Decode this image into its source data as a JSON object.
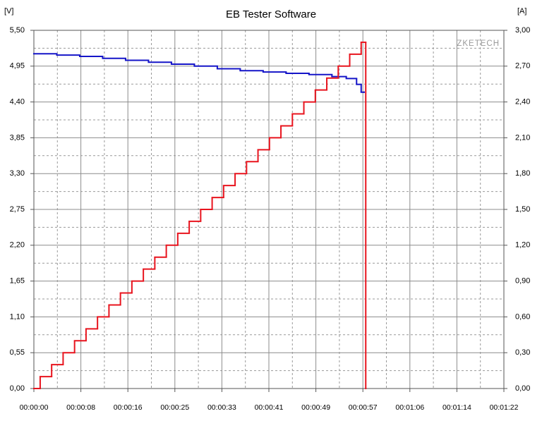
{
  "chart_data": {
    "type": "step",
    "title": "EB Tester Software",
    "y_unit": "[V]",
    "y2_unit": "[A]",
    "watermark": "ZKETECH",
    "xlim": [
      0,
      82
    ],
    "xticks": [
      {
        "value": 0,
        "label": "00:00:00"
      },
      {
        "value": 8.2,
        "label": "00:00:08"
      },
      {
        "value": 16.4,
        "label": "00:00:16"
      },
      {
        "value": 24.6,
        "label": "00:00:25"
      },
      {
        "value": 32.8,
        "label": "00:00:33"
      },
      {
        "value": 41,
        "label": "00:00:41"
      },
      {
        "value": 49.2,
        "label": "00:00:49"
      },
      {
        "value": 57.4,
        "label": "00:00:57"
      },
      {
        "value": 65.6,
        "label": "00:01:06"
      },
      {
        "value": 73.8,
        "label": "00:01:14"
      },
      {
        "value": 82,
        "label": "00:01:22"
      }
    ],
    "ylim": [
      0,
      5.5
    ],
    "yticks": [
      {
        "value": 0,
        "label": "0,00"
      },
      {
        "value": 0.55,
        "label": "0,55"
      },
      {
        "value": 1.1,
        "label": "1,10"
      },
      {
        "value": 1.65,
        "label": "1,65"
      },
      {
        "value": 2.2,
        "label": "2,20"
      },
      {
        "value": 2.75,
        "label": "2,75"
      },
      {
        "value": 3.3,
        "label": "3,30"
      },
      {
        "value": 3.85,
        "label": "3,85"
      },
      {
        "value": 4.4,
        "label": "4,40"
      },
      {
        "value": 4.95,
        "label": "4,95"
      },
      {
        "value": 5.5,
        "label": "5,50"
      }
    ],
    "y2lim": [
      0,
      3
    ],
    "y2ticks": [
      {
        "value": 0,
        "label": "0,00"
      },
      {
        "value": 0.3,
        "label": "0,30"
      },
      {
        "value": 0.6,
        "label": "0,60"
      },
      {
        "value": 0.9,
        "label": "0,90"
      },
      {
        "value": 1.2,
        "label": "1,20"
      },
      {
        "value": 1.5,
        "label": "1,50"
      },
      {
        "value": 1.8,
        "label": "1,80"
      },
      {
        "value": 2.1,
        "label": "2,10"
      },
      {
        "value": 2.4,
        "label": "2,40"
      },
      {
        "value": 2.7,
        "label": "2,70"
      },
      {
        "value": 3,
        "label": "3,00"
      }
    ],
    "grid": true,
    "minor_grid": true,
    "series": [
      {
        "color": "#1515c8",
        "axis": "y",
        "x": [
          0,
          4,
          8,
          12,
          16,
          20,
          24,
          28,
          32,
          36,
          40,
          44,
          48,
          52,
          54.5,
          56.3,
          57.1,
          57.6
        ],
        "values": [
          5.14,
          5.12,
          5.1,
          5.07,
          5.04,
          5.01,
          4.98,
          4.95,
          4.91,
          4.88,
          4.86,
          4.84,
          4.82,
          4.79,
          4.76,
          4.67,
          4.55,
          4.55
        ]
      },
      {
        "color": "#e8141e",
        "axis": "y2",
        "x": [
          0,
          1.1,
          3.1,
          5.1,
          7.1,
          9.1,
          11.1,
          13.1,
          15.1,
          17.1,
          19.1,
          21.1,
          23.1,
          25.1,
          27.1,
          29.1,
          31.1,
          33.1,
          35.1,
          37.1,
          39.1,
          41.1,
          43.1,
          45.1,
          47.1,
          49.1,
          51.1,
          53.1,
          55.1,
          57.1,
          57.9
        ],
        "values": [
          0,
          0.1,
          0.2,
          0.3,
          0.4,
          0.5,
          0.6,
          0.7,
          0.8,
          0.9,
          1.0,
          1.1,
          1.2,
          1.3,
          1.4,
          1.5,
          1.6,
          1.7,
          1.8,
          1.9,
          2.0,
          2.1,
          2.2,
          2.3,
          2.4,
          2.5,
          2.6,
          2.7,
          2.8,
          2.9,
          0
        ]
      }
    ]
  }
}
